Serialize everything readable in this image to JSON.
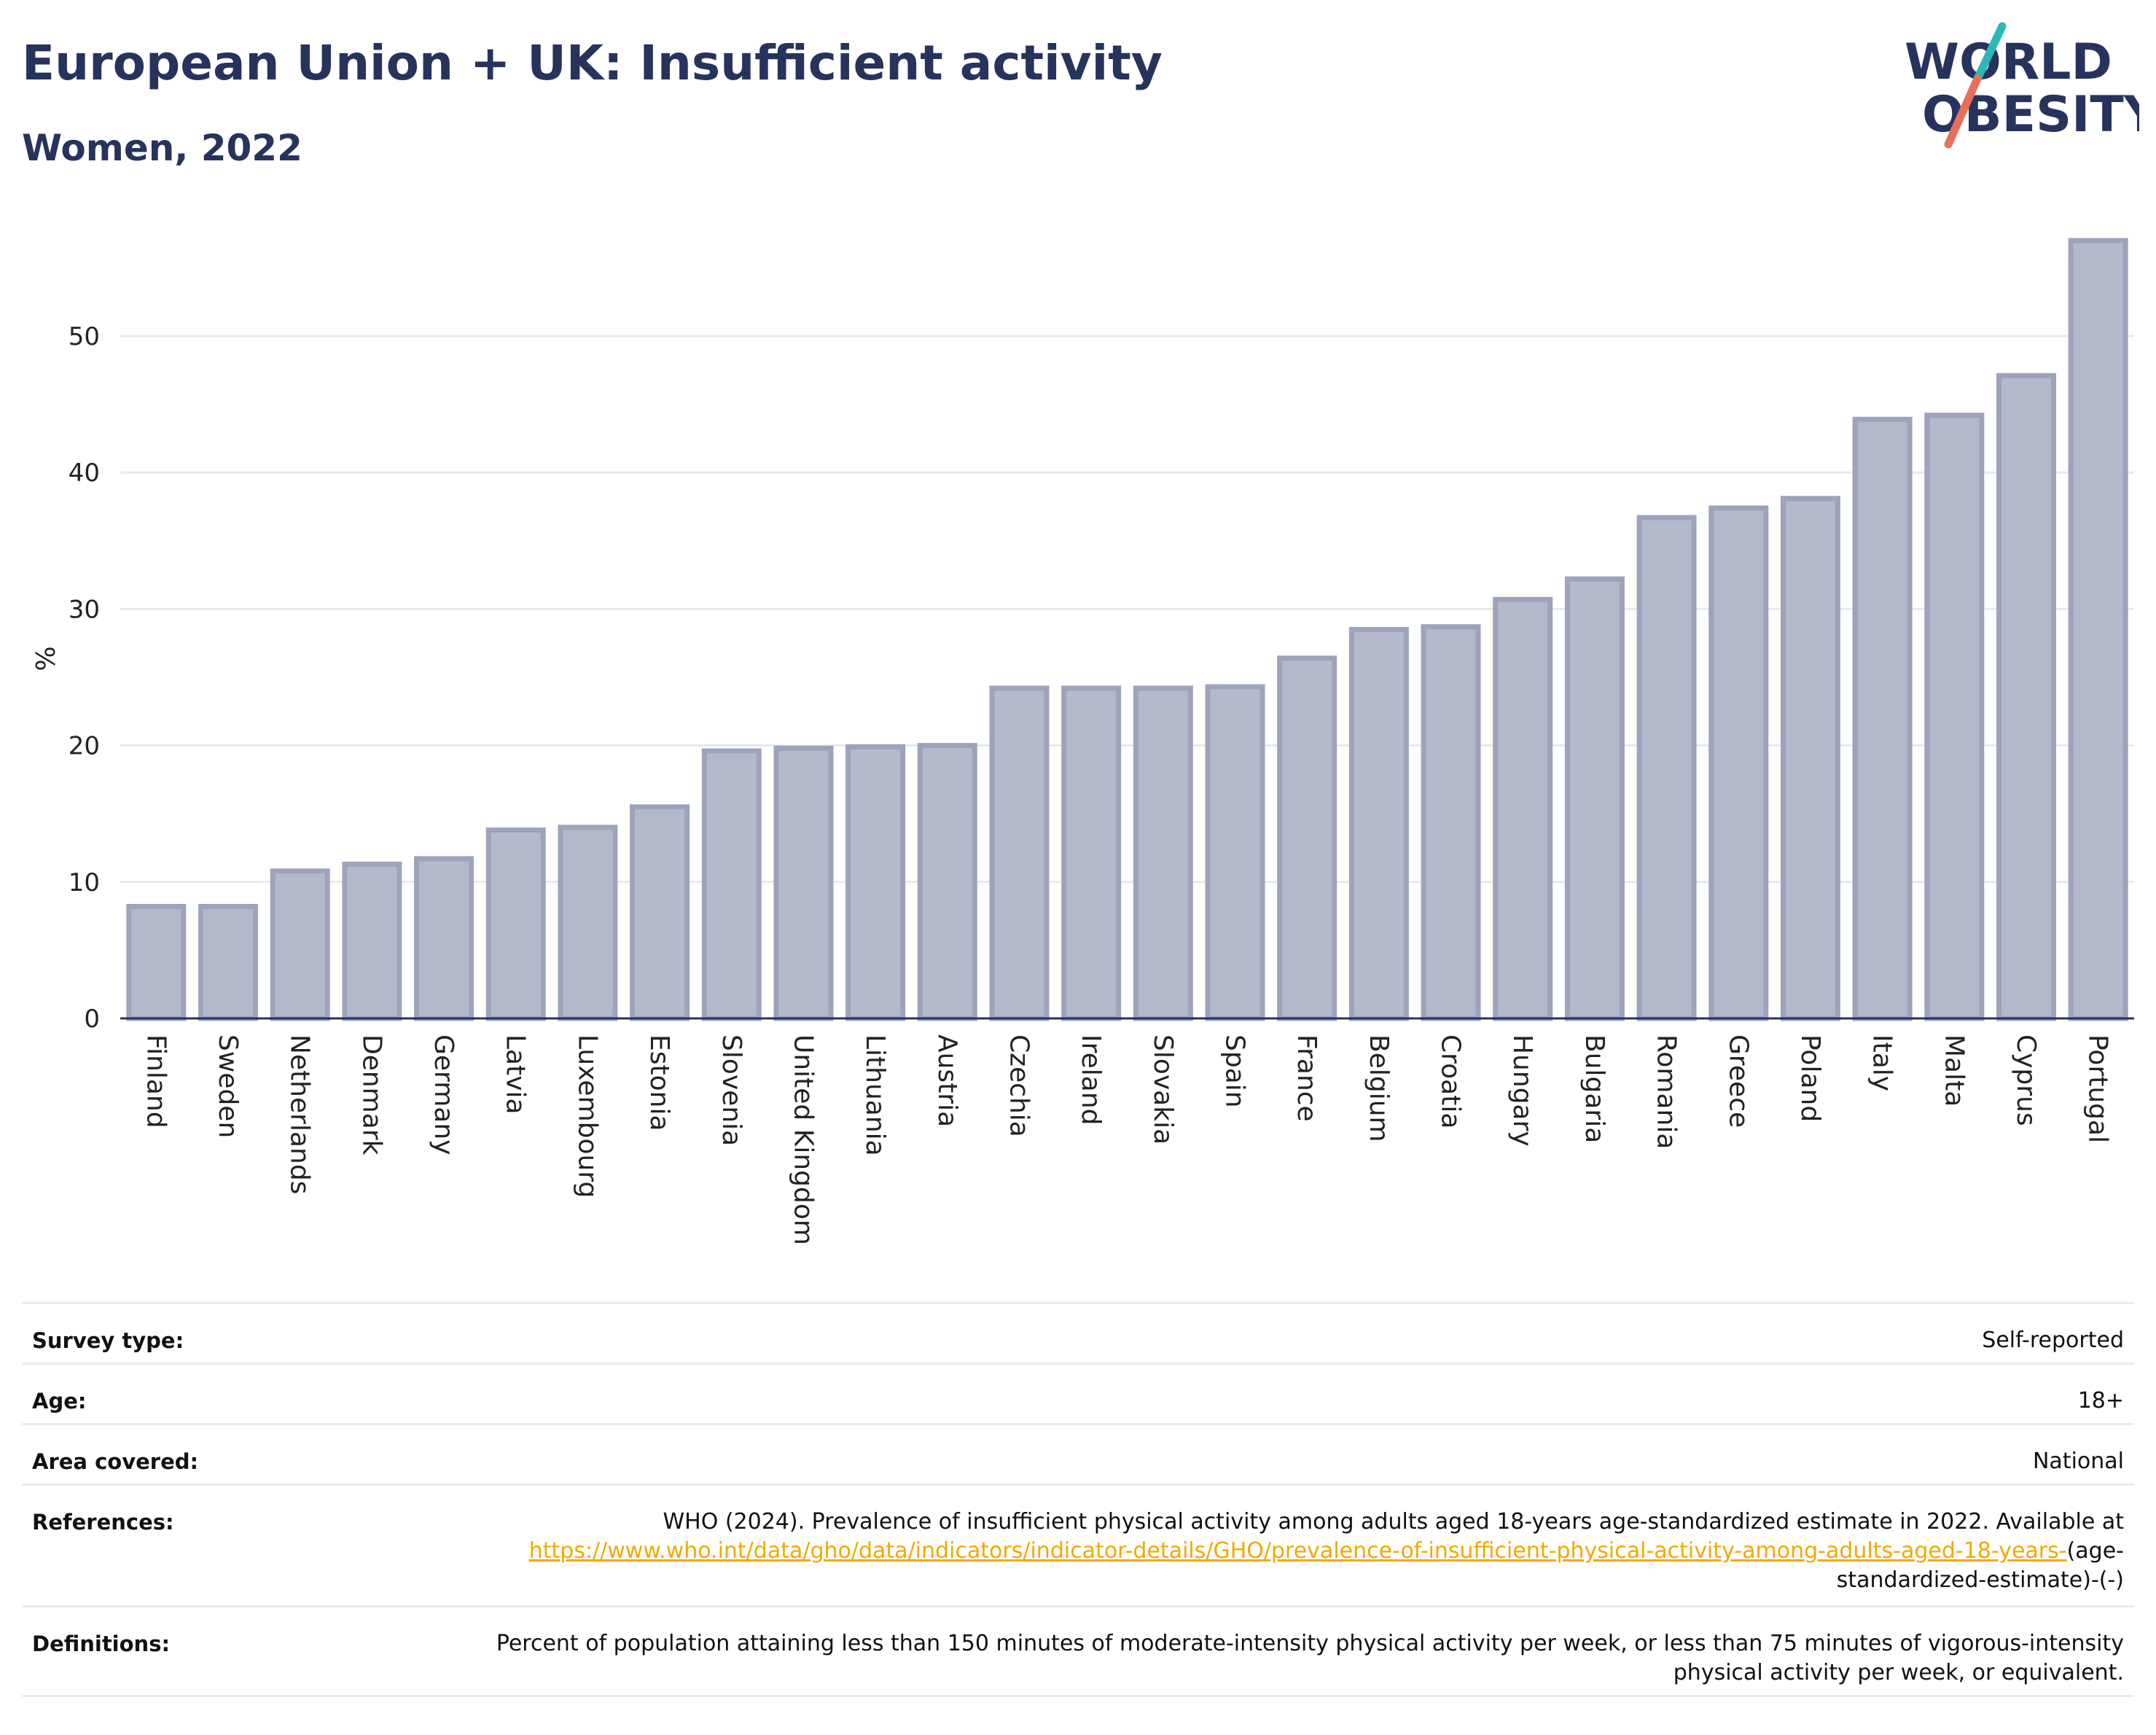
{
  "header": {
    "title": "European Union + UK: Insufficient activity",
    "subtitle": "Women, 2022"
  },
  "logo": {
    "line1": "WORLD",
    "line2": "OBESITY",
    "colors": {
      "text": "#26335d",
      "slash_top": "#2bb7b3",
      "slash_bottom": "#e8705a"
    }
  },
  "chart_data": {
    "type": "bar",
    "title": "European Union + UK: Insufficient activity",
    "subtitle": "Women, 2022",
    "xlabel": "",
    "ylabel": "%",
    "ylim": [
      0,
      57
    ],
    "yticks": [
      0,
      10,
      20,
      30,
      40,
      50
    ],
    "grid": true,
    "legend": "none",
    "bar_color": "#b4b9cc",
    "bar_edge_color": "#9ca3bb",
    "categories": [
      "Finland",
      "Sweden",
      "Netherlands",
      "Denmark",
      "Germany",
      "Latvia",
      "Luxembourg",
      "Estonia",
      "Slovenia",
      "United Kingdom",
      "Lithuania",
      "Austria",
      "Czechia",
      "Ireland",
      "Slovakia",
      "Spain",
      "France",
      "Belgium",
      "Croatia",
      "Hungary",
      "Bulgaria",
      "Romania",
      "Greece",
      "Poland",
      "Italy",
      "Malta",
      "Cyprus",
      "Portugal"
    ],
    "values": [
      8.2,
      8.2,
      10.8,
      11.3,
      11.7,
      13.8,
      14.0,
      15.5,
      19.6,
      19.8,
      19.9,
      20.0,
      24.2,
      24.2,
      24.2,
      24.3,
      26.4,
      28.5,
      28.7,
      30.7,
      32.2,
      36.7,
      37.4,
      38.1,
      43.9,
      44.2,
      47.1,
      57.0
    ]
  },
  "info_table": {
    "rows": [
      {
        "label": "Survey type:",
        "value": "Self-reported"
      },
      {
        "label": "Age:",
        "value": "18+"
      },
      {
        "label": "Area covered:",
        "value": "National"
      },
      {
        "label": "References:",
        "value_pre": "WHO (2024). Prevalence of insufficient physical activity among adults aged 18-years age-standardized estimate in 2022. Available at ",
        "link": "https://www.who.int/data/gho/data/indicators/indicator-details/GHO/prevalence-of-insufficient-physical-activity-among-adults-aged-18-years-",
        "value_post": "(age-standardized-estimate)-(-)"
      },
      {
        "label": "Definitions:",
        "value": "Percent of population attaining less than 150 minutes of moderate-intensity physical activity per week, or less than 75 minutes of vigorous-intensity physical activity per week, or equivalent."
      }
    ]
  }
}
